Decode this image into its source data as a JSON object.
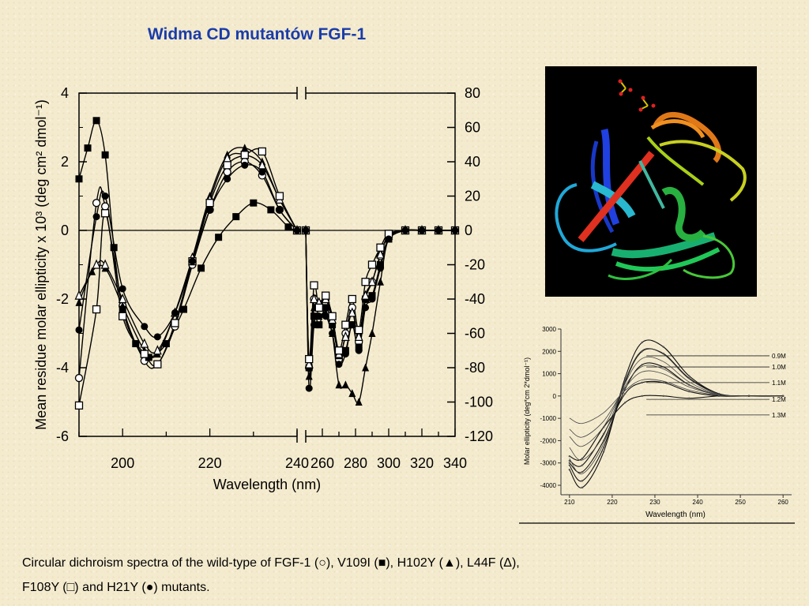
{
  "title": "Widma CD mutantów FGF-1",
  "caption": {
    "line1": "Circular dichroism spectra of the wild-type of FGF-1 (○), V109I (■), H102Y (▲), L44F (Δ),",
    "line2": "F108Y (□) and H21Y (●) mutants."
  },
  "structure_image": {
    "description_icon": "protein-ribbon-structure"
  },
  "chart_data": [
    {
      "type": "line",
      "xlabel": "Wavelength (nm)",
      "ylabel_left": "Mean residue molar ellipticity  x 10³ (deg cm² dmol⁻¹)",
      "left_panel": {
        "xlim": [
          190,
          240
        ],
        "ylim": [
          -6,
          4
        ],
        "x_ticks": [
          200,
          220,
          240
        ],
        "y_ticks": [
          4,
          2,
          0,
          -2,
          -4,
          -6
        ],
        "series": [
          {
            "name": "wild-type",
            "marker": "circle-open",
            "x": [
              190,
              194,
              196,
              200,
              205,
              208,
              212,
              216,
              220,
              224,
              228,
              232,
              236,
              240
            ],
            "y": [
              -4.3,
              0.8,
              0.7,
              -2.2,
              -3.8,
              -3.9,
              -2.8,
              -1.0,
              0.6,
              1.7,
              2.0,
              1.6,
              0.6,
              0.0
            ]
          },
          {
            "name": "V109I",
            "marker": "square-filled",
            "x": [
              190,
              192,
              194,
              196,
              198,
              200,
              203,
              206,
              210,
              214,
              218,
              222,
              226,
              230,
              234,
              238,
              240
            ],
            "y": [
              1.5,
              2.4,
              3.2,
              2.2,
              -0.5,
              -2.3,
              -3.3,
              -3.7,
              -3.3,
              -2.3,
              -1.1,
              -0.2,
              0.4,
              0.8,
              0.6,
              0.1,
              0.0
            ]
          },
          {
            "name": "H102Y",
            "marker": "triangle-filled",
            "x": [
              190,
              193,
              196,
              200,
              205,
              208,
              212,
              216,
              220,
              224,
              228,
              232,
              236,
              240
            ],
            "y": [
              -2.1,
              -1.2,
              -1.1,
              -2.2,
              -3.5,
              -3.6,
              -2.4,
              -0.8,
              1.0,
              2.2,
              2.4,
              2.0,
              0.9,
              0.0
            ]
          },
          {
            "name": "L44F",
            "marker": "triangle-open",
            "x": [
              190,
              194,
              196,
              200,
              205,
              208,
              212,
              216,
              220,
              224,
              228,
              232,
              236,
              240
            ],
            "y": [
              -1.9,
              -1.0,
              -1.0,
              -2.0,
              -3.3,
              -3.5,
              -2.4,
              -0.8,
              0.9,
              2.1,
              2.2,
              1.9,
              0.9,
              0.0
            ]
          },
          {
            "name": "F108Y",
            "marker": "square-open",
            "x": [
              190,
              194,
              196,
              200,
              205,
              208,
              212,
              216,
              220,
              224,
              228,
              232,
              236,
              240
            ],
            "y": [
              -5.1,
              -2.3,
              0.5,
              -2.5,
              -3.6,
              -3.9,
              -2.7,
              -0.9,
              0.8,
              1.9,
              2.2,
              2.3,
              1.0,
              0.0
            ]
          },
          {
            "name": "H21Y",
            "marker": "circle-filled",
            "x": [
              190,
              194,
              196,
              200,
              205,
              208,
              212,
              216,
              220,
              224,
              228,
              232,
              236,
              240
            ],
            "y": [
              -2.9,
              0.4,
              1.0,
              -1.7,
              -2.8,
              -3.1,
              -2.4,
              -0.9,
              0.6,
              1.5,
              1.9,
              1.7,
              0.6,
              0.0
            ]
          }
        ]
      },
      "right_panel": {
        "xlim": [
          250,
          340
        ],
        "ylim": [
          -120,
          80
        ],
        "x_ticks": [
          260,
          280,
          300,
          320,
          340
        ],
        "y_ticks": [
          80,
          60,
          40,
          20,
          0,
          -20,
          -40,
          -60,
          -80,
          -100,
          -120
        ],
        "series": [
          {
            "name": "wild-type",
            "marker": "circle-open",
            "x": [
              250,
              252,
              255,
              258,
              262,
              266,
              270,
              274,
              278,
              282,
              286,
              290,
              295,
              300,
              310,
              320,
              330,
              340
            ],
            "y": [
              0,
              -80,
              -40,
              -43,
              -40,
              -50,
              -75,
              -60,
              -45,
              -65,
              -40,
              -30,
              -15,
              -3,
              0,
              0,
              0,
              0
            ]
          },
          {
            "name": "V109I",
            "marker": "square-filled",
            "x": [
              250,
              252,
              255,
              258,
              262,
              266,
              270,
              274,
              278,
              282,
              286,
              290,
              295,
              300,
              310,
              320,
              330,
              340
            ],
            "y": [
              0,
              -80,
              -50,
              -55,
              -45,
              -55,
              -73,
              -70,
              -55,
              -68,
              -40,
              -38,
              -20,
              -5,
              0,
              0,
              0,
              0
            ]
          },
          {
            "name": "H102Y",
            "marker": "triangle-filled",
            "x": [
              250,
              252,
              255,
              258,
              262,
              266,
              270,
              274,
              278,
              282,
              286,
              290,
              295,
              300,
              310,
              320,
              330,
              340
            ],
            "y": [
              0,
              -85,
              -45,
              -50,
              -48,
              -60,
              -90,
              -90,
              -95,
              -100,
              -80,
              -60,
              -30,
              -5,
              0,
              0,
              0,
              0
            ]
          },
          {
            "name": "L44F",
            "marker": "triangle-open",
            "x": [
              250,
              252,
              255,
              258,
              262,
              266,
              270,
              274,
              278,
              282,
              286,
              290,
              295,
              300,
              310,
              320,
              330,
              340
            ],
            "y": [
              0,
              -78,
              -40,
              -42,
              -40,
              -52,
              -72,
              -62,
              -48,
              -62,
              -38,
              -30,
              -14,
              -3,
              0,
              0,
              0,
              0
            ]
          },
          {
            "name": "F108Y",
            "marker": "square-open",
            "x": [
              250,
              252,
              255,
              258,
              262,
              266,
              270,
              274,
              278,
              282,
              286,
              290,
              295,
              300,
              310,
              320,
              330,
              340
            ],
            "y": [
              0,
              -75,
              -32,
              -45,
              -38,
              -50,
              -70,
              -55,
              -40,
              -58,
              -30,
              -20,
              -10,
              -2,
              0,
              0,
              0,
              0
            ]
          },
          {
            "name": "H21Y",
            "marker": "circle-filled",
            "x": [
              250,
              252,
              255,
              258,
              262,
              266,
              270,
              274,
              278,
              282,
              286,
              290,
              295,
              300,
              310,
              320,
              330,
              340
            ],
            "y": [
              0,
              -92,
              -55,
              -50,
              -50,
              -60,
              -78,
              -72,
              -55,
              -70,
              -45,
              -40,
              -22,
              -5,
              0,
              0,
              0,
              0
            ]
          }
        ]
      }
    },
    {
      "type": "line",
      "xlabel": "Wavelength  (nm)",
      "ylabel": "Molar ellipticity  (deg*cm 2*dmol⁻¹)",
      "xlim": [
        208,
        262
      ],
      "ylim": [
        -4000,
        3000
      ],
      "x_ticks": [
        210,
        220,
        230,
        240,
        250,
        260
      ],
      "y_ticks": [
        3000,
        2000,
        1000,
        0,
        -1000,
        -2000,
        -3000,
        -4000
      ],
      "labels": [
        "0.9M",
        "1.0M",
        "1.1M",
        "1.2M",
        "1.3M"
      ],
      "series": [
        {
          "name": "0.9M",
          "x": [
            210,
            213,
            218,
            223,
            227,
            232,
            238,
            245,
            252,
            260
          ],
          "y": [
            -3300,
            -4100,
            -2500,
            800,
            2400,
            2200,
            900,
            100,
            0,
            0
          ]
        },
        {
          "name": "1.0M",
          "x": [
            210,
            213,
            218,
            223,
            227,
            232,
            238,
            245,
            252,
            260
          ],
          "y": [
            -3100,
            -3800,
            -2300,
            600,
            2000,
            1900,
            800,
            100,
            0,
            0
          ]
        },
        {
          "name": "1.1M",
          "x": [
            210,
            213,
            218,
            223,
            227,
            232,
            238,
            245,
            252,
            260
          ],
          "y": [
            -3000,
            -3400,
            -2000,
            300,
            1400,
            1300,
            500,
            50,
            0,
            0
          ]
        },
        {
          "name": "1.2M",
          "x": [
            210,
            213,
            218,
            223,
            227,
            232,
            238,
            245,
            252,
            260
          ],
          "y": [
            -2900,
            -3100,
            -1700,
            100,
            600,
            600,
            200,
            0,
            0,
            0
          ]
        },
        {
          "name": "1.3M",
          "x": [
            210,
            213,
            218,
            223,
            227,
            232,
            238,
            245,
            252,
            260
          ],
          "y": [
            -2700,
            -2800,
            -1400,
            -300,
            0,
            0,
            -100,
            0,
            0,
            0
          ]
        }
      ]
    }
  ]
}
